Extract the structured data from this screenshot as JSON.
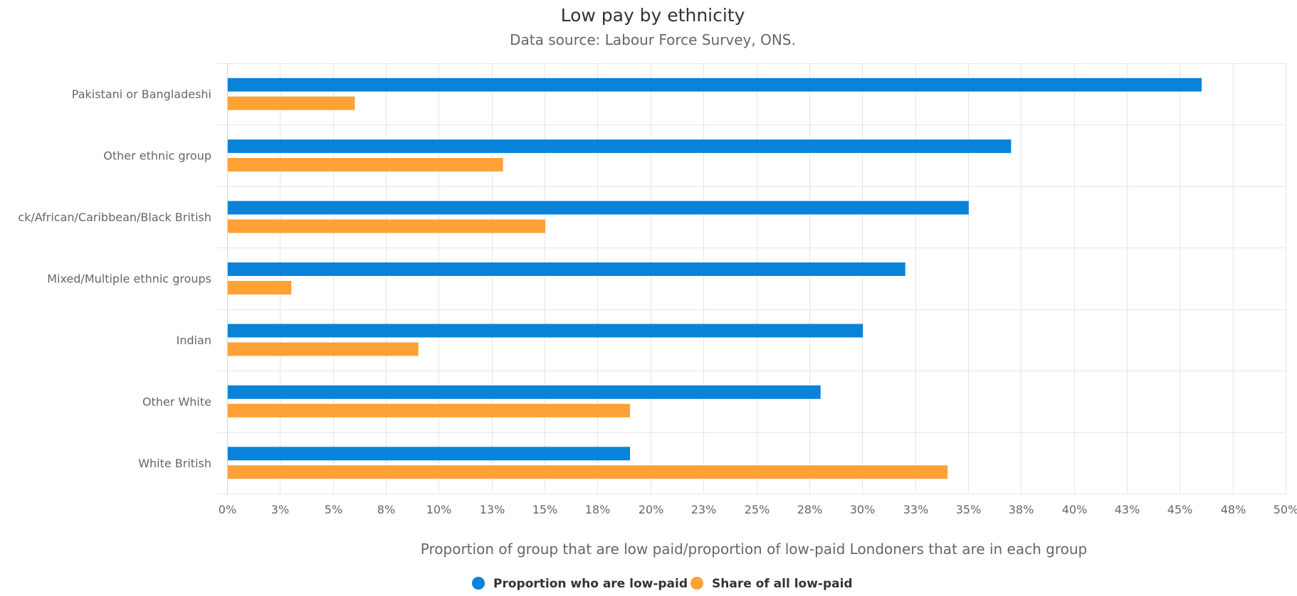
{
  "chart_data": {
    "type": "bar",
    "orientation": "horizontal",
    "title": "Low pay by ethnicity",
    "subtitle": "Data source: Labour Force Survey, ONS.",
    "xlabel": "Proportion of group that are low paid/proportion of low-paid Londoners that are in each group",
    "ylabel": "",
    "xlim": [
      0,
      50
    ],
    "x_ticks": [
      "0%",
      "3%",
      "5%",
      "8%",
      "10%",
      "13%",
      "15%",
      "18%",
      "20%",
      "23%",
      "25%",
      "28%",
      "30%",
      "33%",
      "35%",
      "38%",
      "40%",
      "43%",
      "45%",
      "48%",
      "50%"
    ],
    "grid": true,
    "legend_position": "bottom-center",
    "categories": [
      "Pakistani or Bangladeshi",
      "Other ethnic group",
      "ck/African/Caribbean/Black British",
      "Mixed/Multiple ethnic groups",
      "Indian",
      "Other White",
      "White British"
    ],
    "series": [
      {
        "name": "Proportion who are low-paid",
        "color": "#0883d9",
        "values": [
          46,
          37,
          35,
          32,
          30,
          28,
          19
        ]
      },
      {
        "name": "Share of all low-paid",
        "color": "#fea136",
        "values": [
          6,
          13,
          15,
          3,
          9,
          19,
          34
        ]
      }
    ]
  }
}
